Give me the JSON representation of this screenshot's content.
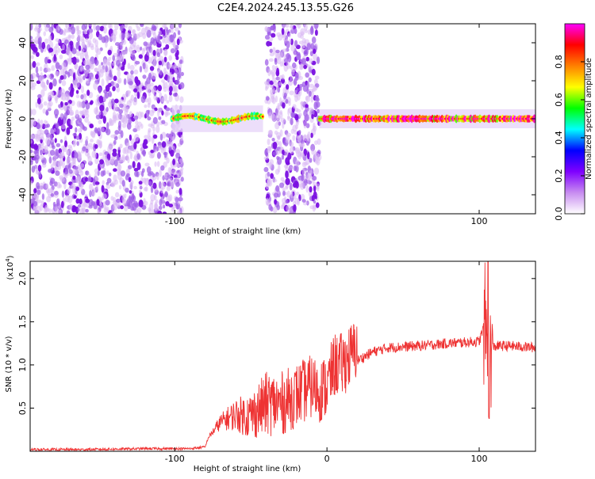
{
  "title": "C2E4.2024.245.13.55.G26",
  "chart_data": [
    {
      "type": "heatmap",
      "title": "C2E4.2024.245.13.55.G26",
      "xlabel": "Height of straight line (km)",
      "ylabel": "Frequency (Hz)",
      "xlim": [
        -195,
        137
      ],
      "ylim": [
        -50,
        50
      ],
      "x_ticks": [
        -100,
        0,
        100
      ],
      "x_tick_labels": [
        "-100",
        "",
        "100"
      ],
      "y_ticks": [
        -40,
        -20,
        0,
        20,
        40
      ],
      "y_tick_labels": [
        "-40",
        "-20",
        "0",
        "20",
        "40"
      ],
      "colorbar": {
        "label": "Normalized spectral amplitude",
        "range": [
          0,
          1
        ],
        "ticks": [
          0.0,
          0.2,
          0.4,
          0.6,
          0.8
        ],
        "tick_labels": [
          "0.0",
          "0.2",
          "0.4",
          "0.6",
          "0.8"
        ],
        "colors": [
          "#ffffff",
          "#c88cf0",
          "#7f00ff",
          "#0000ff",
          "#00ffff",
          "#00ff00",
          "#ffff00",
          "#ff8000",
          "#ff0000",
          "#ff00ff"
        ]
      },
      "regions": [
        {
          "x": [
            -195,
            -95
          ],
          "f": [
            -50,
            50
          ],
          "kind": "noise",
          "amplitude": 0.15
        },
        {
          "x": [
            -102,
            -42
          ],
          "f": [
            -5,
            5
          ],
          "kind": "band",
          "amplitude": 0.35
        },
        {
          "x": [
            -40,
            -5
          ],
          "f": [
            -50,
            50
          ],
          "kind": "noise",
          "amplitude": 0.15
        },
        {
          "x": [
            -5,
            137
          ],
          "f": [
            -3,
            3
          ],
          "kind": "band",
          "amplitude": 0.55
        }
      ],
      "grid": false
    },
    {
      "type": "line",
      "xlabel": "Height of straight line (km)",
      "ylabel": "SNR (10 * v/v)",
      "y_multiplier_label": "(x10",
      "y_multiplier_exponent": "4",
      "y_multiplier_close": ")",
      "xlim": [
        -195,
        137
      ],
      "ylim": [
        0,
        2.2
      ],
      "x_ticks": [
        -100,
        0,
        100
      ],
      "x_tick_labels": [
        "-100",
        "0",
        "100"
      ],
      "y_ticks": [
        0.5,
        1.0,
        1.5,
        2.0
      ],
      "y_tick_labels": [
        "0.5",
        "1.0",
        "1.5",
        "2.0"
      ],
      "color": "#ee3333",
      "series": [
        {
          "x": [
            -195,
            -160,
            -120,
            -90,
            -80,
            -78,
            -70,
            -60,
            -50,
            -40,
            -30,
            -20,
            -10,
            -5,
            0,
            5,
            10,
            15,
            20,
            30,
            40,
            60,
            80,
            100,
            104,
            106,
            108,
            112,
            120,
            137
          ],
          "y": [
            0.02,
            0.02,
            0.03,
            0.03,
            0.05,
            0.15,
            0.3,
            0.35,
            0.3,
            0.4,
            0.4,
            0.5,
            0.6,
            0.55,
            0.6,
            0.85,
            0.85,
            0.95,
            1.05,
            1.15,
            1.2,
            1.22,
            1.25,
            1.27,
            1.5,
            1.0,
            1.2,
            1.22,
            1.22,
            1.2
          ]
        }
      ],
      "grid": false
    }
  ]
}
